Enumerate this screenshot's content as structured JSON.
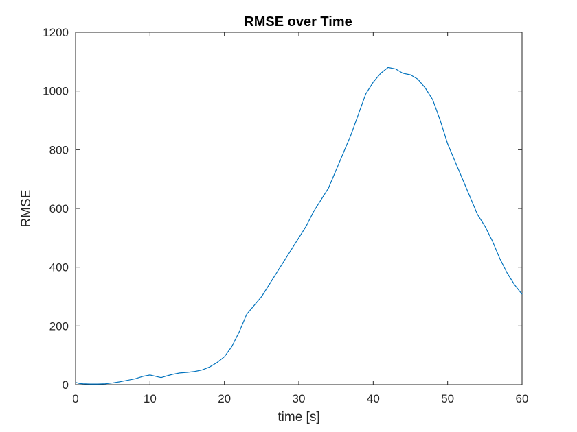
{
  "chart_data": {
    "type": "line",
    "title": "RMSE over Time",
    "xlabel": "time [s]",
    "ylabel": "RMSE",
    "xlim": [
      0,
      60
    ],
    "ylim": [
      0,
      1200
    ],
    "xticks": [
      0,
      10,
      20,
      30,
      40,
      50,
      60
    ],
    "yticks": [
      0,
      200,
      400,
      600,
      800,
      1000,
      1200
    ],
    "grid": false,
    "legend": false,
    "line_color": "#0072BD",
    "series": [
      {
        "x": [
          0,
          0.5,
          1,
          2,
          3,
          4,
          5,
          6,
          7,
          8,
          9,
          10,
          11,
          11.5,
          12,
          13,
          14,
          15,
          16,
          17,
          18,
          19,
          20,
          21,
          22,
          23,
          24,
          25,
          26,
          27,
          28,
          29,
          30,
          31,
          32,
          33,
          34,
          35,
          36,
          37,
          38,
          39,
          40,
          41,
          42,
          43,
          44,
          45,
          46,
          47,
          48,
          49,
          50,
          51,
          52,
          53,
          54,
          55,
          56,
          57,
          58,
          59,
          60
        ],
        "y": [
          8,
          4,
          3,
          2,
          2,
          3,
          6,
          10,
          15,
          20,
          28,
          33,
          27,
          24,
          28,
          35,
          40,
          42,
          45,
          50,
          60,
          75,
          95,
          130,
          180,
          240,
          270,
          300,
          340,
          380,
          420,
          460,
          500,
          540,
          590,
          630,
          670,
          730,
          790,
          850,
          920,
          990,
          1030,
          1060,
          1080,
          1075,
          1060,
          1055,
          1040,
          1010,
          970,
          900,
          820,
          760,
          700,
          640,
          580,
          540,
          490,
          430,
          380,
          340,
          308
        ]
      }
    ]
  }
}
